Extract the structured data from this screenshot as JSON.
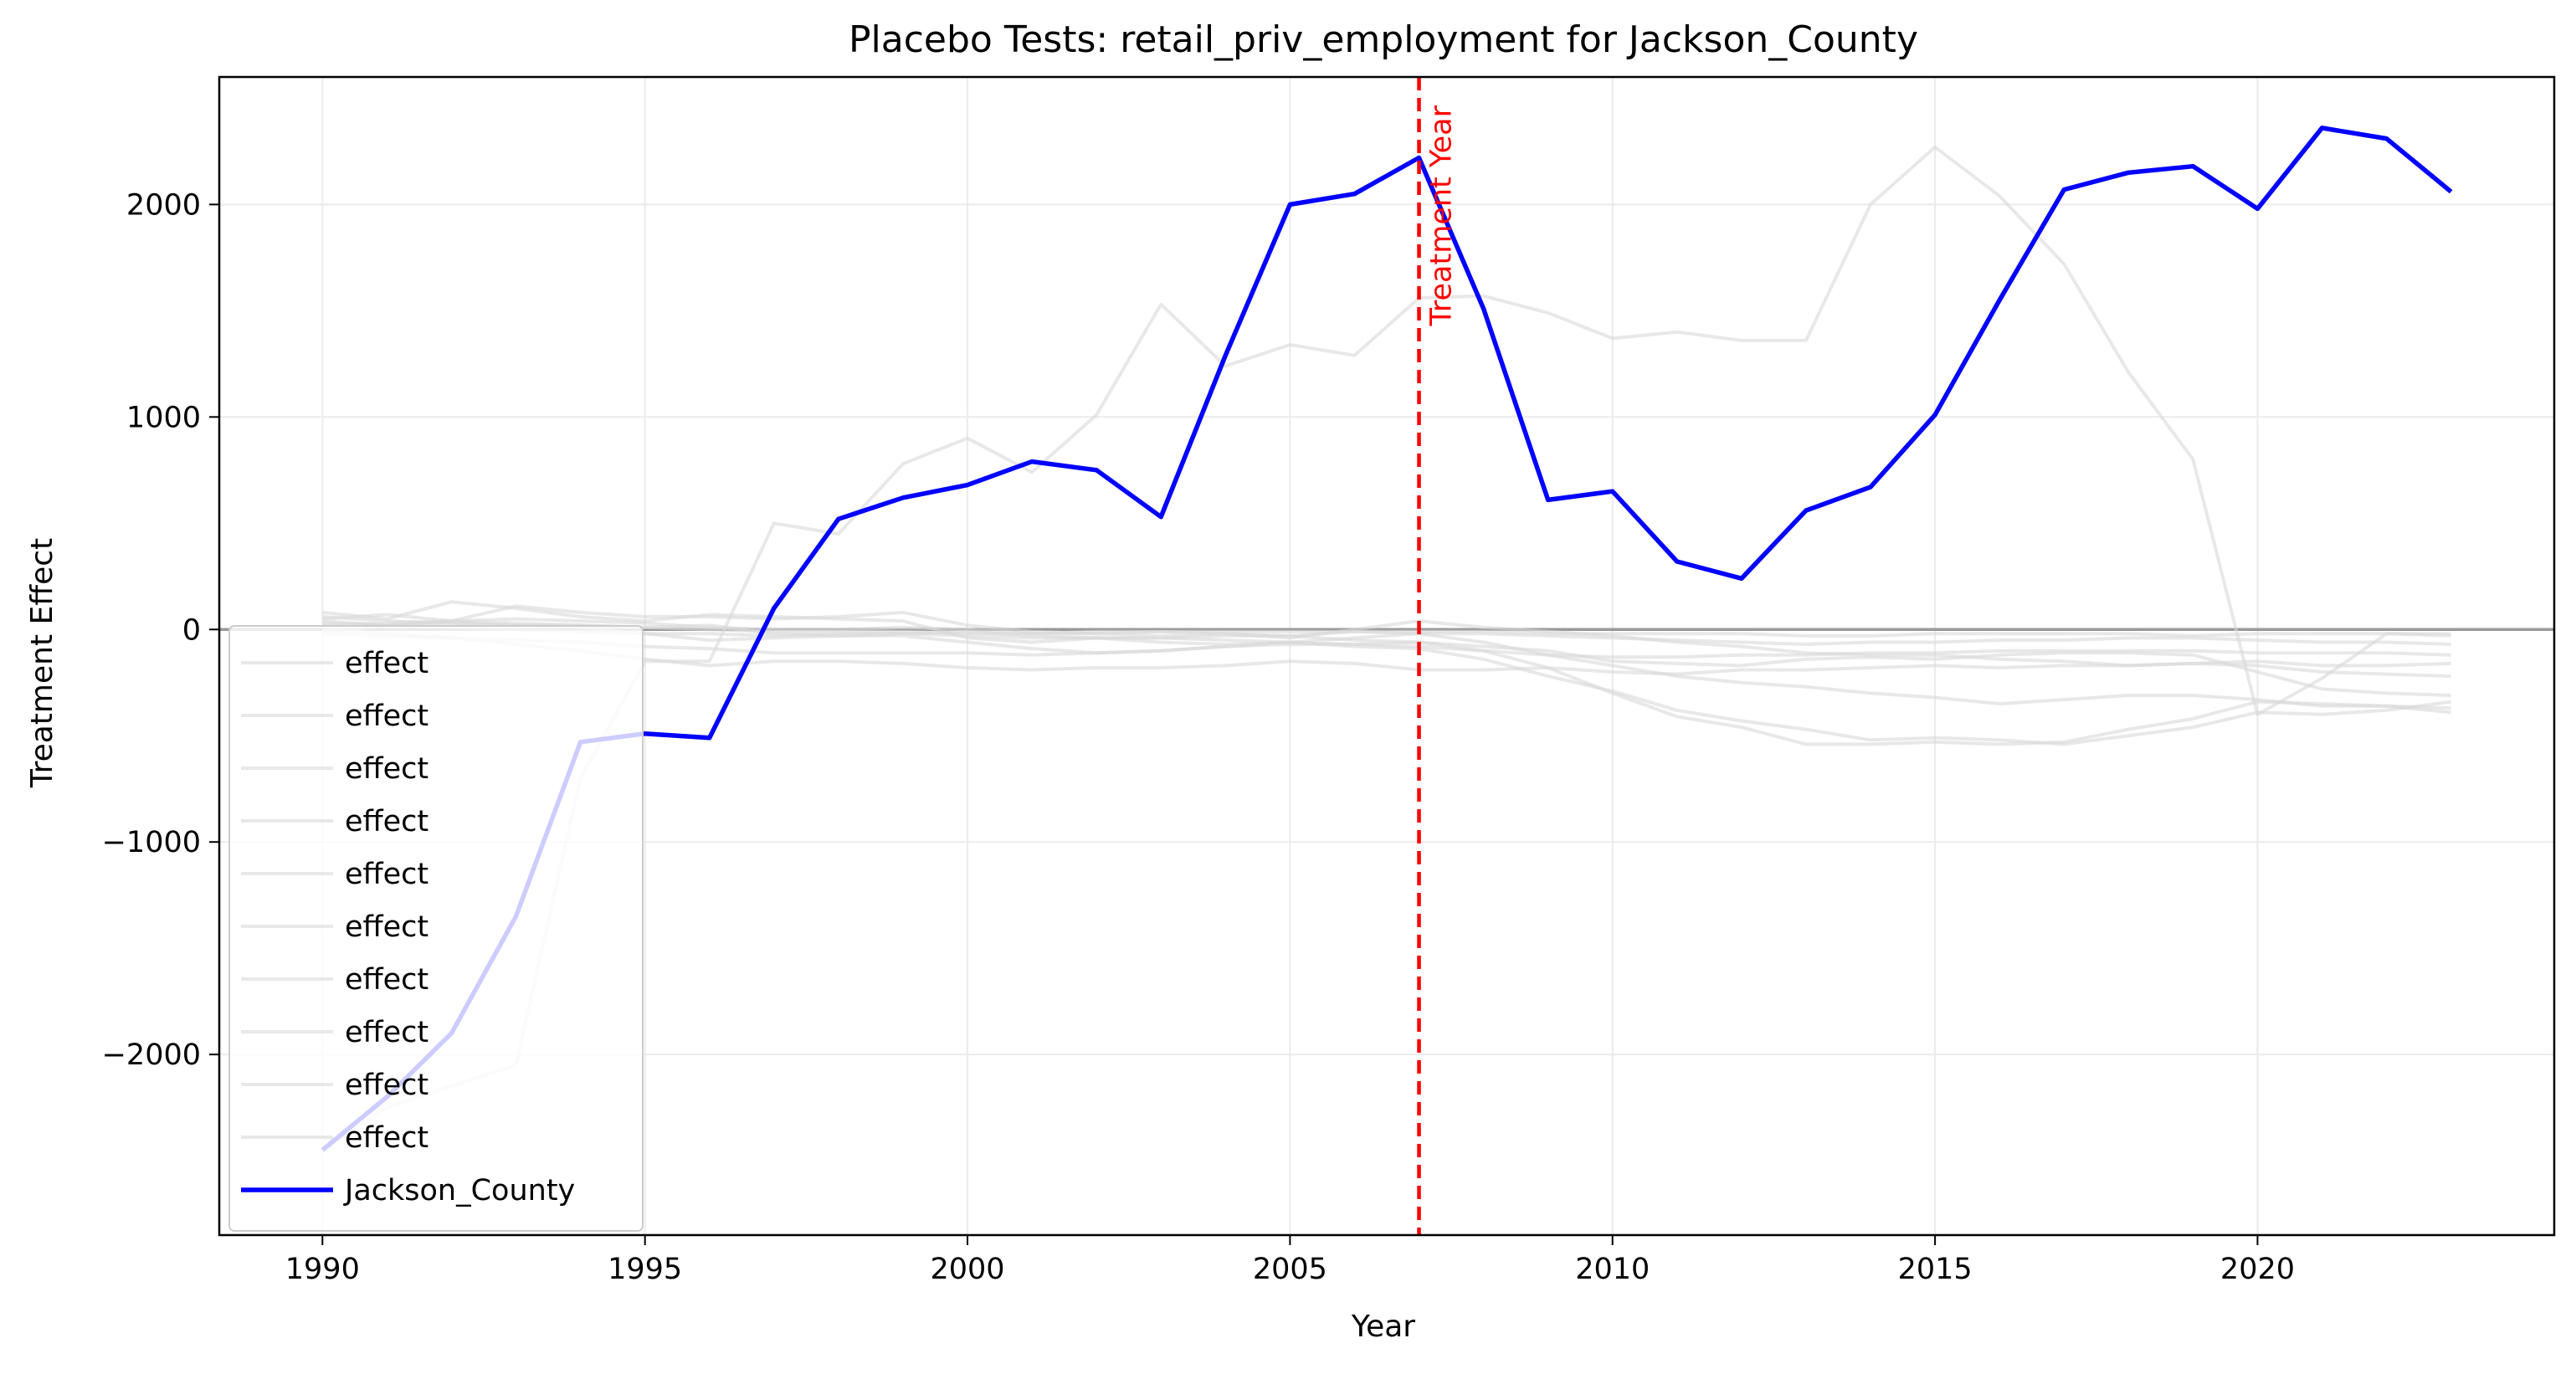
{
  "chart_data": {
    "type": "line",
    "title": "Placebo Tests: retail_priv_employment for Jackson_County",
    "xlabel": "Year",
    "ylabel": "Treatment Effect",
    "xlim": [
      1988.4,
      2024.6
    ],
    "ylim": [
      -2850,
      2600
    ],
    "x_ticks": [
      1990,
      1995,
      2000,
      2005,
      2010,
      2015,
      2020
    ],
    "y_ticks": [
      -2000,
      -1000,
      0,
      1000,
      2000
    ],
    "x_tick_labels": [
      "1990",
      "1995",
      "2000",
      "2005",
      "2010",
      "2015",
      "2020"
    ],
    "y_tick_labels": [
      "−2000",
      "−1000",
      "0",
      "1000",
      "2000"
    ],
    "grid": true,
    "legend_position": "lower-left",
    "zero_line": {
      "y": 0,
      "color": "#999999"
    },
    "treatment_marker": {
      "x": 2007,
      "label": "Treatment Year",
      "color": "#ff0000",
      "style": "dashed"
    },
    "x": [
      1990,
      1991,
      1992,
      1993,
      1994,
      1995,
      1996,
      1997,
      1998,
      1999,
      2000,
      2001,
      2002,
      2003,
      2004,
      2005,
      2006,
      2007,
      2008,
      2009,
      2010,
      2011,
      2012,
      2013,
      2014,
      2015,
      2016,
      2017,
      2018,
      2019,
      2020,
      2021,
      2022,
      2023
    ],
    "series": [
      {
        "name": "effect",
        "color": "#d9d9d9",
        "values": [
          -2450,
          -2250,
          -2150,
          -2050,
          -700,
          -150,
          -150,
          500,
          450,
          780,
          900,
          740,
          1010,
          1530,
          1240,
          1340,
          1290,
          1560,
          1570,
          1490,
          1370,
          1400,
          1360,
          1360,
          2000,
          2270,
          2040,
          1720,
          1210,
          800,
          -400,
          -230,
          -20,
          -30
        ]
      },
      {
        "name": "effect",
        "color": "#d9d9d9",
        "values": [
          50,
          70,
          40,
          50,
          40,
          30,
          10,
          0,
          0,
          10,
          0,
          -20,
          -10,
          -10,
          -20,
          -40,
          0,
          40,
          10,
          -10,
          -30,
          -60,
          -80,
          -110,
          -120,
          -120,
          -140,
          -150,
          -170,
          -160,
          -150,
          -170,
          -170,
          -160
        ]
      },
      {
        "name": "effect",
        "color": "#d9d9d9",
        "values": [
          80,
          50,
          130,
          100,
          60,
          40,
          70,
          60,
          50,
          40,
          -40,
          -60,
          -40,
          -60,
          -70,
          -60,
          -80,
          -90,
          -140,
          -220,
          -290,
          -380,
          -430,
          -470,
          -520,
          -510,
          -520,
          -540,
          -500,
          -460,
          -390,
          -400,
          -380,
          -340
        ]
      },
      {
        "name": "effect",
        "color": "#d9d9d9",
        "values": [
          30,
          20,
          40,
          110,
          80,
          60,
          60,
          50,
          60,
          80,
          20,
          -10,
          -20,
          -30,
          -20,
          -30,
          -10,
          -20,
          -60,
          -120,
          -170,
          -220,
          -250,
          -270,
          -300,
          -320,
          -350,
          -330,
          -310,
          -310,
          -330,
          -360,
          -360,
          -370
        ]
      },
      {
        "name": "effect",
        "color": "#d9d9d9",
        "values": [
          -10,
          20,
          30,
          20,
          10,
          -20,
          -50,
          -40,
          -30,
          -20,
          -10,
          -30,
          -40,
          -40,
          -30,
          -30,
          -50,
          -60,
          -80,
          -100,
          -150,
          -160,
          -170,
          -140,
          -130,
          -140,
          -120,
          -110,
          -110,
          -120,
          -200,
          -280,
          -300,
          -310
        ]
      },
      {
        "name": "effect",
        "color": "#d9d9d9",
        "values": [
          -20,
          -30,
          -40,
          -50,
          -60,
          -80,
          -90,
          -110,
          -110,
          -110,
          -110,
          -120,
          -110,
          -100,
          -80,
          -60,
          -40,
          -20,
          -20,
          -30,
          -40,
          -50,
          -60,
          -70,
          -60,
          -60,
          -50,
          -50,
          -40,
          -40,
          -50,
          -60,
          -60,
          -70
        ]
      },
      {
        "name": "effect",
        "color": "#d9d9d9",
        "values": [
          60,
          40,
          30,
          20,
          20,
          10,
          0,
          -10,
          -10,
          -10,
          -20,
          -20,
          -20,
          -10,
          -10,
          -10,
          -10,
          -10,
          -10,
          -20,
          -20,
          -20,
          -20,
          -30,
          -30,
          -20,
          -20,
          -20,
          -20,
          -30,
          -20,
          -20,
          -20,
          -20
        ]
      },
      {
        "name": "effect",
        "color": "#d9d9d9",
        "values": [
          0,
          -20,
          -40,
          -70,
          -100,
          -140,
          -170,
          -150,
          -150,
          -160,
          -180,
          -190,
          -180,
          -180,
          -170,
          -150,
          -160,
          -190,
          -190,
          -180,
          -200,
          -210,
          -190,
          -190,
          -180,
          -170,
          -180,
          -170,
          -170,
          -160,
          -170,
          -200,
          -210,
          -220
        ]
      },
      {
        "name": "effect",
        "color": "#d9d9d9",
        "values": [
          20,
          30,
          40,
          30,
          20,
          10,
          20,
          -20,
          -30,
          -30,
          -60,
          -90,
          -110,
          -100,
          -80,
          -70,
          -70,
          -60,
          -100,
          -180,
          -300,
          -410,
          -460,
          -540,
          -540,
          -530,
          -540,
          -530,
          -470,
          -420,
          -340,
          -350,
          -360,
          -390
        ]
      },
      {
        "name": "effect",
        "color": "#d9d9d9",
        "values": [
          40,
          20,
          10,
          0,
          -10,
          -20,
          -20,
          -30,
          -20,
          -20,
          -30,
          -40,
          -40,
          -40,
          -50,
          -60,
          -70,
          -80,
          -100,
          -120,
          -130,
          -130,
          -120,
          -120,
          -110,
          -110,
          -100,
          -100,
          -100,
          -100,
          -110,
          -110,
          -110,
          -120
        ]
      },
      {
        "name": "Jackson_County",
        "color": "#0000ff",
        "values": [
          -2450,
          -2200,
          -1900,
          -1350,
          -530,
          -490,
          -510,
          100,
          520,
          620,
          680,
          790,
          750,
          530,
          1290,
          2000,
          2050,
          2220,
          1510,
          610,
          650,
          320,
          240,
          560,
          670,
          1010,
          1550,
          2070,
          2150,
          2180,
          1980,
          2360,
          2310,
          2060
        ]
      }
    ]
  }
}
